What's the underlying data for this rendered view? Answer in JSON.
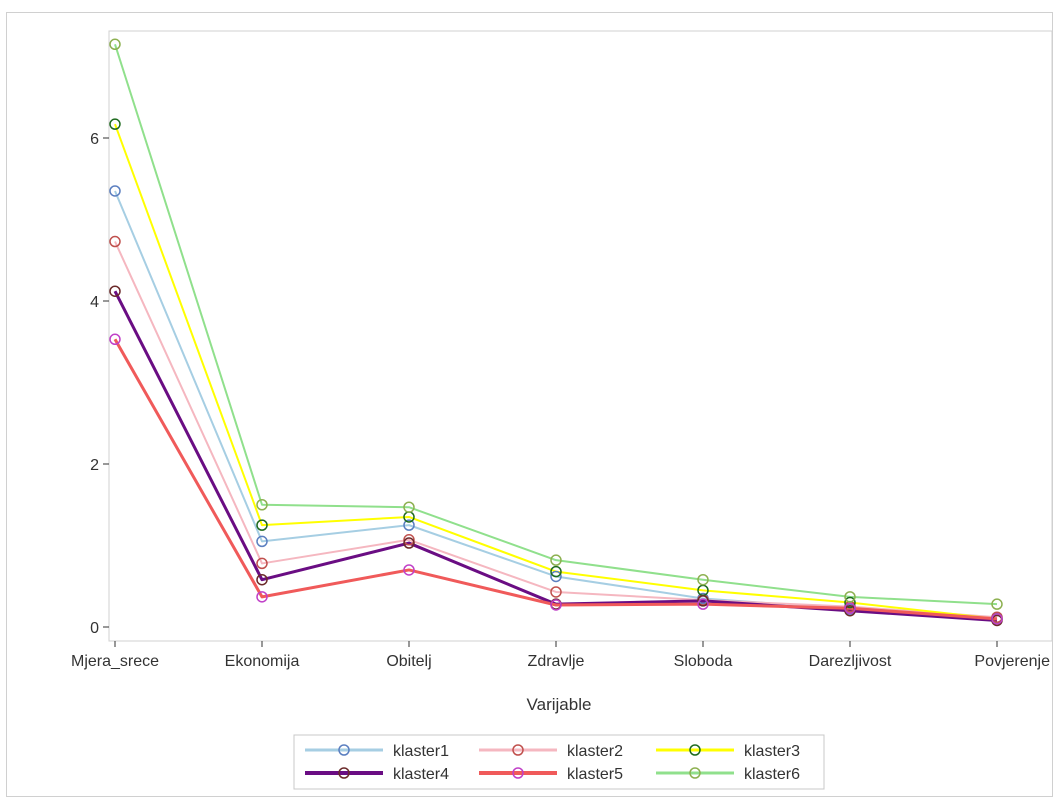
{
  "chart_data": {
    "type": "line",
    "title": "",
    "xlabel": "Varijable",
    "ylabel": "",
    "categories": [
      "Mjera_srece",
      "Ekonomija",
      "Obitelj",
      "Zdravlje",
      "Sloboda",
      "Darezljivost",
      "Povjerenje"
    ],
    "yticks": [
      "0",
      "2",
      "4",
      "6"
    ],
    "ylim": [
      0,
      7.2
    ],
    "grid": false,
    "legend_position": "bottom",
    "series": [
      {
        "name": "klaster1",
        "line_color": "#a6cee3",
        "marker_color": "#5b7fc0",
        "line_width": 2,
        "values": [
          5.35,
          1.05,
          1.25,
          0.62,
          0.35,
          0.22,
          0.1
        ]
      },
      {
        "name": "klaster2",
        "line_color": "#f5b7c0",
        "marker_color": "#c0504d",
        "line_width": 2,
        "values": [
          4.73,
          0.78,
          1.07,
          0.43,
          0.33,
          0.25,
          0.12
        ]
      },
      {
        "name": "klaster3",
        "line_color": "#ffff00",
        "marker_color": "#1f6b1f",
        "line_width": 2,
        "values": [
          6.17,
          1.25,
          1.35,
          0.68,
          0.45,
          0.3,
          0.1
        ]
      },
      {
        "name": "klaster4",
        "line_color": "#6a0d83",
        "marker_color": "#6b2a2a",
        "line_width": 3,
        "values": [
          4.12,
          0.58,
          1.03,
          0.28,
          0.32,
          0.2,
          0.08
        ]
      },
      {
        "name": "klaster5",
        "line_color": "#f05a5a",
        "marker_color": "#c040c8",
        "line_width": 3,
        "values": [
          3.53,
          0.37,
          0.7,
          0.27,
          0.28,
          0.23,
          0.1
        ]
      },
      {
        "name": "klaster6",
        "line_color": "#90e08c",
        "marker_color": "#8db050",
        "line_width": 2,
        "values": [
          7.15,
          1.5,
          1.47,
          0.82,
          0.58,
          0.37,
          0.28
        ]
      }
    ]
  }
}
